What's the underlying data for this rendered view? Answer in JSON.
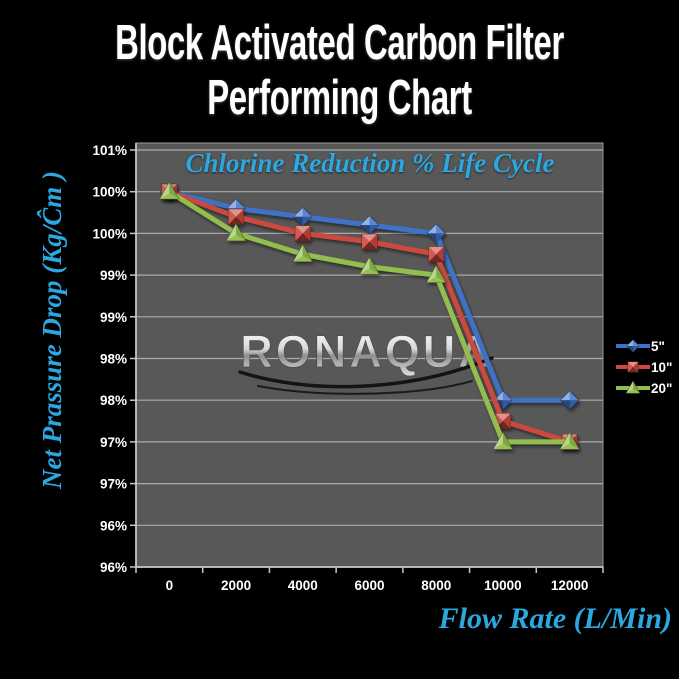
{
  "page": {
    "title_line1": "Block Activated Carbon Filter",
    "title_line2": "Performing Chart"
  },
  "colors": {
    "background": "#000000",
    "plot_fill": "#585858",
    "gridline": "#ABABAB",
    "axis_line": "#C6C6C6",
    "title_text": "#FFFFFF",
    "accent_cyan": "#2DA7E0",
    "tick_text": "#FFFFFF",
    "series_blue": "#3E72C8",
    "series_red": "#CC4940",
    "series_green": "#93BD4D",
    "watermark_silver": "#D8D8D8"
  },
  "chart_data": {
    "type": "line",
    "title": "Chlorine Reduction % Life Cycle",
    "x_title": "Flow Rate (L/Min)",
    "y_title": "Net Prassure Drop (Kg/Ĉm )",
    "watermark": "RONAQUA",
    "categories": [
      0,
      2000,
      4000,
      6000,
      8000,
      10000,
      12000
    ],
    "x_tick_labels": [
      "0",
      "2000",
      "4000",
      "6000",
      "8000",
      "10000",
      "12000"
    ],
    "y_tick_labels": [
      "101%",
      "100%",
      "100%",
      "99%",
      "99%",
      "98%",
      "98%",
      "97%",
      "97%",
      "96%",
      "96%"
    ],
    "ylim": [
      96,
      101
    ],
    "y_step": 0.5,
    "grid": true,
    "legend_position": "right",
    "series": [
      {
        "name": "5\"",
        "marker": "diamond",
        "color": "#3E72C8",
        "values": [
          100.5,
          100.3,
          100.2,
          100.1,
          100.0,
          98.0,
          98.0
        ]
      },
      {
        "name": "10\"",
        "marker": "square",
        "color": "#CC4940",
        "values": [
          100.5,
          100.2,
          100.0,
          99.9,
          99.75,
          97.75,
          97.5
        ]
      },
      {
        "name": "20\"",
        "marker": "triangle",
        "color": "#93BD4D",
        "values": [
          100.5,
          100.0,
          99.75,
          99.6,
          99.5,
          97.5,
          97.5
        ]
      }
    ]
  }
}
